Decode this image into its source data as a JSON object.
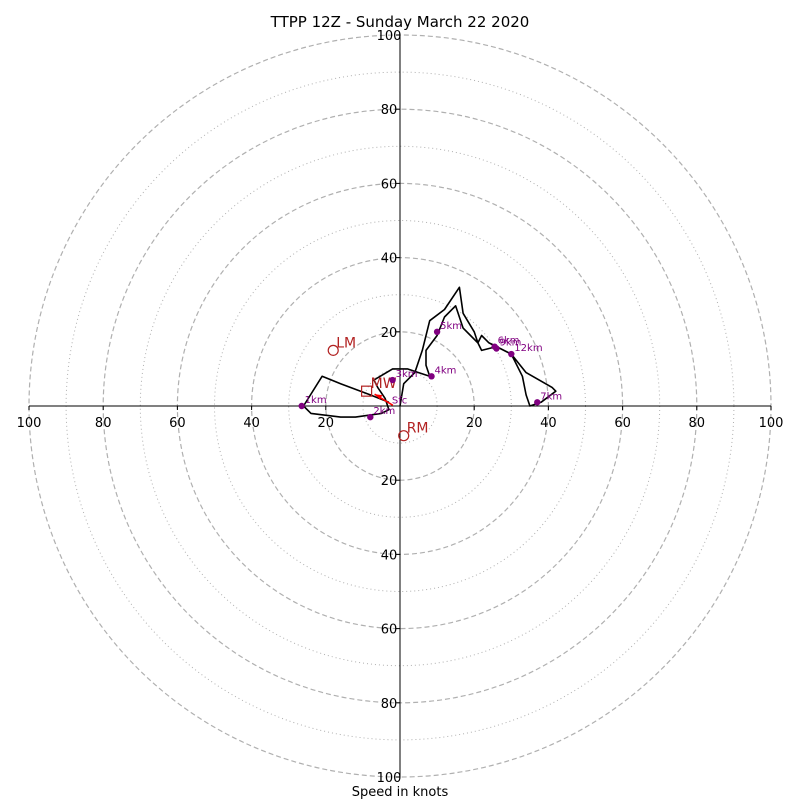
{
  "chart_data": {
    "type": "hodograph",
    "title": "TTPP 12Z - Sunday March 22 2020",
    "xlabel": "Speed in knots",
    "range": [
      -100,
      100
    ],
    "rings_dashed": [
      20,
      40,
      60,
      80,
      100
    ],
    "rings_dotted": [
      10,
      30,
      50,
      70,
      90
    ],
    "tick_labels": {
      "positive_x": [
        "20",
        "40",
        "60",
        "80",
        "100"
      ],
      "negative_x": [
        "20",
        "40",
        "60",
        "80",
        "100"
      ],
      "positive_y": [
        "20",
        "40",
        "60",
        "80",
        "100"
      ],
      "negative_y": [
        "20",
        "40",
        "60",
        "80",
        "100"
      ],
      "edge_left": "100",
      "edge_right": "100"
    },
    "trace": [
      [
        -3,
        1
      ],
      [
        -8,
        3
      ],
      [
        -16,
        6
      ],
      [
        -21,
        8
      ],
      [
        -26,
        0
      ],
      [
        -24,
        -2
      ],
      [
        -16,
        -3
      ],
      [
        -12,
        -3
      ],
      [
        -5,
        -2
      ],
      [
        -3,
        -1
      ],
      [
        -4,
        2
      ],
      [
        -6,
        5
      ],
      [
        -7,
        7
      ],
      [
        -2,
        10
      ],
      [
        2,
        10
      ],
      [
        5,
        9
      ],
      [
        8,
        8
      ],
      [
        7,
        11
      ],
      [
        7,
        15
      ],
      [
        10,
        19
      ],
      [
        12,
        24
      ],
      [
        15,
        27
      ],
      [
        17,
        21
      ],
      [
        19,
        19
      ],
      [
        21,
        17
      ],
      [
        22,
        19
      ],
      [
        24,
        17
      ],
      [
        26,
        16
      ],
      [
        28,
        15
      ],
      [
        30,
        14
      ],
      [
        34,
        9
      ],
      [
        41,
        5
      ],
      [
        42,
        4
      ],
      [
        38,
        1
      ],
      [
        35,
        0
      ],
      [
        34,
        3
      ],
      [
        33,
        8
      ],
      [
        30,
        14
      ],
      [
        26,
        16
      ],
      [
        22,
        15
      ],
      [
        21,
        17
      ],
      [
        20,
        20
      ],
      [
        17,
        25
      ],
      [
        16,
        32
      ],
      [
        12,
        26
      ],
      [
        8,
        23
      ],
      [
        6,
        15
      ],
      [
        4,
        9
      ],
      [
        1,
        6
      ],
      [
        0,
        0
      ]
    ],
    "levels": [
      {
        "label": "Sfc",
        "u": -3,
        "v": 1
      },
      {
        "label": "1km",
        "u": -26.5,
        "v": 0
      },
      {
        "label": "2km",
        "u": -8,
        "v": -3
      },
      {
        "label": "3km",
        "u": -2,
        "v": 7
      },
      {
        "label": "4km",
        "u": 8.5,
        "v": 8
      },
      {
        "label": "5km",
        "u": 10,
        "v": 20
      },
      {
        "label": "6km",
        "u": 25.5,
        "v": 16
      },
      {
        "label": "7km",
        "u": 37,
        "v": 1
      },
      {
        "label": "9km",
        "u": 26,
        "v": 15.5
      },
      {
        "label": "12km",
        "u": 30,
        "v": 14
      }
    ],
    "storm_motion": {
      "mean_wind": {
        "label": "MW",
        "u": -9,
        "v": 4
      },
      "left_mover": {
        "label": "LM",
        "u": -18,
        "v": 15
      },
      "right_mover": {
        "label": "RM",
        "u": 1,
        "v": -8
      }
    },
    "colors": {
      "trace": "#000000",
      "level_marker": "#800080",
      "storm_motion": "#b22222",
      "shear_vector": "#ff0000",
      "grid": "#b0b0b0"
    }
  }
}
